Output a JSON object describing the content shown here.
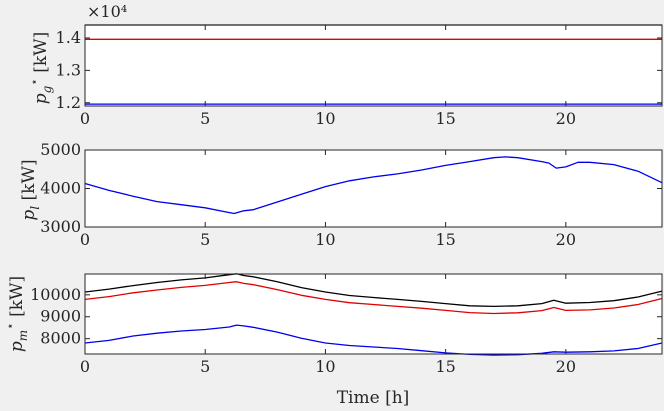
{
  "chart_data": [
    {
      "type": "line",
      "ylabel": "p_g^⋆ [kW]",
      "y_exponent_label": "×10⁴",
      "xlim": [
        0,
        24
      ],
      "ylim": [
        1.19,
        1.44
      ],
      "xticks": [
        0,
        5,
        10,
        15,
        20
      ],
      "xtick_labels": [
        "0",
        "5",
        "10",
        "15",
        "20"
      ],
      "yticks": [
        1.2,
        1.3,
        1.4
      ],
      "ytick_labels": [
        "1.2",
        "1.3",
        "1.4"
      ],
      "grid": false,
      "series": [
        {
          "color": "#000000",
          "x": [
            0,
            24
          ],
          "y": [
            1.44,
            1.44
          ]
        },
        {
          "color": "#e00000",
          "x": [
            0,
            24
          ],
          "y": [
            1.396,
            1.396
          ]
        },
        {
          "color": "#0000ee",
          "x": [
            0,
            24
          ],
          "y": [
            1.196,
            1.196
          ]
        }
      ]
    },
    {
      "type": "line",
      "ylabel": "p_l [kW]",
      "xlim": [
        0,
        24
      ],
      "ylim": [
        3000,
        5000
      ],
      "xticks": [
        0,
        5,
        10,
        15,
        20
      ],
      "xtick_labels": [
        "0",
        "5",
        "10",
        "15",
        "20"
      ],
      "yticks": [
        3000,
        4000,
        5000
      ],
      "ytick_labels": [
        "3000",
        "4000",
        "5000"
      ],
      "grid": false,
      "series": [
        {
          "color": "#0000ee",
          "x": [
            0,
            1,
            2,
            3,
            4,
            5,
            5.8,
            6.2,
            6.6,
            7,
            8,
            9,
            10,
            11,
            12,
            13,
            14,
            15,
            16,
            17,
            17.5,
            18,
            19,
            19.3,
            19.6,
            20,
            20.5,
            21,
            22,
            23,
            24
          ],
          "y": [
            4130,
            3950,
            3800,
            3660,
            3580,
            3500,
            3400,
            3350,
            3420,
            3450,
            3650,
            3850,
            4050,
            4200,
            4300,
            4380,
            4480,
            4600,
            4700,
            4800,
            4820,
            4800,
            4700,
            4660,
            4530,
            4560,
            4680,
            4680,
            4620,
            4450,
            4150
          ]
        }
      ]
    },
    {
      "type": "line",
      "ylabel": "p_m^⋆ [kW]",
      "xlabel": "Time [h]",
      "xlim": [
        0,
        24
      ],
      "ylim": [
        7300,
        10950
      ],
      "xticks": [
        0,
        5,
        10,
        15,
        20
      ],
      "xtick_labels": [
        "0",
        "5",
        "10",
        "15",
        "20"
      ],
      "yticks": [
        8000,
        9000,
        10000
      ],
      "ytick_labels": [
        "8000",
        "9000",
        "10000"
      ],
      "grid": false,
      "series": [
        {
          "color": "#000000",
          "x": [
            0,
            1,
            2,
            3,
            4,
            5,
            6,
            6.3,
            6.6,
            7,
            8,
            9,
            10,
            11,
            12,
            13,
            14,
            15,
            16,
            17,
            18,
            19,
            19.5,
            20,
            21,
            22,
            23,
            24
          ],
          "y": [
            10130,
            10260,
            10420,
            10560,
            10680,
            10770,
            10920,
            10960,
            10880,
            10820,
            10600,
            10330,
            10130,
            9970,
            9880,
            9790,
            9700,
            9600,
            9500,
            9470,
            9500,
            9600,
            9750,
            9620,
            9650,
            9730,
            9900,
            10170
          ]
        },
        {
          "color": "#e00000",
          "x": [
            0,
            1,
            2,
            3,
            4,
            5,
            6,
            6.3,
            6.6,
            7,
            8,
            9,
            10,
            11,
            12,
            13,
            14,
            15,
            16,
            17,
            18,
            19,
            19.5,
            20,
            21,
            22,
            23,
            24
          ],
          "y": [
            9790,
            9920,
            10090,
            10220,
            10340,
            10430,
            10560,
            10600,
            10520,
            10460,
            10240,
            9980,
            9790,
            9640,
            9560,
            9470,
            9390,
            9290,
            9190,
            9150,
            9180,
            9280,
            9420,
            9290,
            9310,
            9400,
            9560,
            9830
          ]
        },
        {
          "color": "#0000ee",
          "x": [
            0,
            1,
            2,
            3,
            4,
            5,
            6,
            6.3,
            6.6,
            7,
            8,
            9,
            10,
            11,
            12,
            13,
            14,
            15,
            16,
            17,
            18,
            19,
            19.5,
            20,
            21,
            22,
            23,
            24
          ],
          "y": [
            7800,
            7920,
            8120,
            8250,
            8350,
            8420,
            8530,
            8620,
            8580,
            8520,
            8300,
            8020,
            7800,
            7690,
            7620,
            7550,
            7450,
            7350,
            7280,
            7250,
            7270,
            7330,
            7400,
            7380,
            7400,
            7440,
            7550,
            7800
          ]
        }
      ]
    }
  ]
}
